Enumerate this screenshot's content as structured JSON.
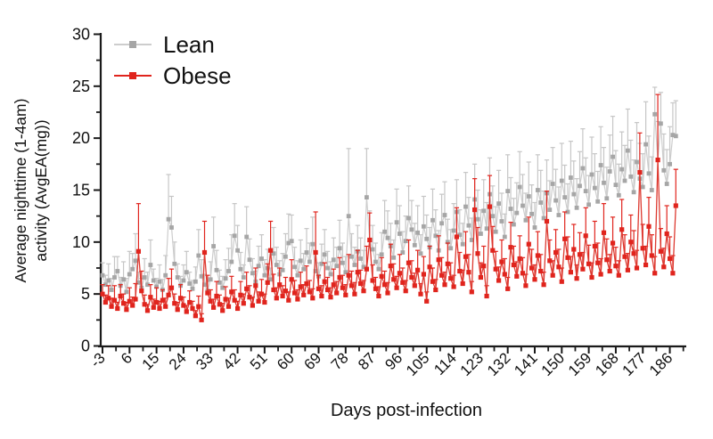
{
  "figure": {
    "background": "#ffffff",
    "axis_color": "#1a1a1a"
  },
  "legend": {
    "items": [
      {
        "label": "Lean",
        "marker_color": "#a6a6a6",
        "line_color": "#cdcdcd"
      },
      {
        "label": "Obese",
        "marker_color": "#e0241d",
        "line_color": "#e0241d"
      }
    ]
  },
  "chart_data": {
    "type": "line",
    "title": "",
    "xlabel": "Days post-infection",
    "ylabel_line1": "Average nighttime (1-4am)",
    "ylabel_line2": "activity (AvgEA(mg))",
    "error_bars": "upper",
    "x_axis": {
      "ticks": [
        -3,
        6,
        15,
        24,
        33,
        42,
        51,
        60,
        69,
        78,
        87,
        96,
        105,
        114,
        123,
        132,
        141,
        150,
        159,
        168,
        177,
        186
      ],
      "minor_tick_offset": 4.5,
      "minor_tick_step": 9,
      "tick_label_rotation": -45
    },
    "y_axis": {
      "ticks": [
        0,
        5,
        10,
        15,
        20,
        25,
        30
      ],
      "minor_ticks": [
        2.5,
        7.5,
        12.5,
        17.5,
        22.5,
        27.5
      ],
      "range": [
        0,
        30
      ]
    },
    "x_start": -3,
    "x_step": 1,
    "series": [
      {
        "name": "Lean",
        "marker": "square",
        "marker_color": "#a6a6a6",
        "line_color": "#cdcdcd",
        "error_color": "#c6c6c6",
        "values": [
          6.8,
          5.9,
          6.3,
          5.4,
          6.6,
          7.2,
          5.8,
          6.4,
          5.2,
          6.9,
          7.4,
          8.2,
          6.1,
          5.6,
          6.6,
          5.9,
          7.8,
          6.3,
          5.7,
          6.2,
          5.4,
          6.8,
          12.2,
          11.4,
          7.9,
          6.6,
          5.8,
          6.3,
          7.1,
          6.0,
          5.5,
          6.2,
          8.7,
          6.7,
          5.9,
          5.3,
          6.4,
          9.6,
          7.3,
          6.1,
          5.6,
          6.5,
          7.2,
          8.1,
          10.6,
          9.2,
          7.4,
          6.6,
          10.5,
          8.3,
          7.0,
          6.2,
          7.7,
          8.4,
          6.8,
          7.5,
          6.4,
          8.9,
          7.8,
          6.9,
          7.3,
          8.6,
          9.9,
          10.1,
          7.6,
          6.8,
          8.2,
          7.4,
          9.0,
          8.1,
          9.8,
          7.2,
          6.7,
          7.9,
          8.8,
          7.5,
          6.9,
          8.3,
          7.7,
          9.4,
          8.0,
          7.1,
          12.5,
          8.6,
          7.8,
          9.1,
          8.4,
          7.6,
          14.3,
          10.2,
          9.3,
          8.1,
          7.4,
          8.8,
          11.0,
          10.4,
          9.6,
          8.5,
          11.9,
          10.8,
          9.0,
          10.1,
          12.3,
          11.2,
          9.7,
          10.9,
          8.9,
          11.5,
          10.3,
          9.5,
          12.1,
          10.6,
          9.2,
          11.8,
          12.6,
          10.0,
          9.4,
          11.1,
          12.9,
          10.7,
          9.8,
          13.4,
          11.6,
          10.2,
          14.1,
          12.2,
          10.8,
          13.0,
          11.3,
          14.6,
          12.5,
          11.0,
          13.7,
          12.0,
          10.5,
          14.9,
          13.2,
          11.7,
          12.8,
          15.3,
          13.5,
          12.1,
          14.4,
          12.7,
          11.4,
          15.0,
          13.8,
          12.3,
          14.7,
          13.1,
          15.6,
          14.0,
          12.6,
          15.9,
          14.3,
          12.9,
          16.2,
          14.6,
          13.3,
          15.4,
          17.1,
          14.9,
          13.6,
          16.5,
          15.2,
          13.9,
          17.4,
          15.7,
          14.2,
          16.8,
          18.2,
          15.5,
          14.5,
          17.0,
          15.9,
          18.8,
          16.3,
          14.8,
          17.7,
          16.1,
          15.3,
          19.4,
          16.6,
          15.0,
          22.3,
          17.9,
          21.4,
          16.9,
          15.6,
          17.5,
          20.3,
          20.2
        ],
        "errors_up": [
          1.2,
          0.9,
          1.6,
          1.1,
          2.0,
          1.4,
          0.8,
          1.7,
          1.3,
          2.2,
          1.5,
          2.6,
          1.0,
          0.9,
          1.8,
          1.2,
          2.4,
          1.1,
          0.8,
          1.6,
          1.0,
          1.9,
          4.3,
          3.0,
          2.1,
          1.3,
          0.9,
          1.5,
          2.0,
          1.1,
          0.8,
          1.4,
          2.5,
          1.6,
          1.0,
          0.9,
          1.7,
          2.8,
          1.9,
          1.2,
          1.1,
          1.8,
          2.2,
          2.6,
          3.1,
          2.4,
          1.6,
          1.2,
          2.9,
          2.0,
          1.4,
          1.0,
          1.9,
          2.3,
          1.5,
          1.8,
          1.1,
          2.5,
          1.7,
          1.3,
          1.6,
          2.2,
          2.8,
          2.5,
          1.9,
          1.4,
          2.0,
          1.5,
          2.3,
          1.8,
          2.6,
          1.7,
          1.3,
          1.9,
          2.4,
          1.6,
          1.2,
          2.1,
          1.8,
          2.7,
          1.9,
          1.5,
          6.5,
          2.2,
          1.7,
          2.5,
          2.0,
          1.6,
          4.7,
          2.8,
          2.3,
          1.8,
          1.4,
          2.1,
          3.0,
          2.6,
          2.2,
          1.7,
          3.2,
          2.7,
          2.0,
          2.4,
          3.1,
          2.8,
          2.1,
          2.6,
          1.8,
          2.9,
          2.3,
          1.9,
          3.0,
          2.5,
          1.9,
          2.8,
          3.2,
          2.2,
          1.8,
          2.6,
          3.1,
          2.4,
          2.0,
          3.3,
          2.7,
          2.1,
          3.4,
          2.8,
          2.3,
          3.0,
          2.5,
          3.5,
          2.9,
          2.4,
          3.2,
          2.7,
          2.2,
          3.5,
          3.0,
          2.5,
          2.9,
          3.4,
          3.0,
          2.6,
          3.3,
          2.8,
          2.4,
          3.4,
          3.1,
          2.6,
          3.2,
          2.8,
          3.5,
          3.0,
          2.7,
          3.6,
          3.1,
          2.7,
          3.5,
          3.2,
          2.8,
          3.3,
          3.8,
          3.2,
          2.8,
          3.6,
          3.3,
          2.9,
          3.7,
          3.4,
          3.0,
          3.5,
          3.9,
          3.3,
          3.0,
          3.6,
          3.4,
          4.0,
          3.5,
          3.1,
          3.8,
          3.4,
          3.2,
          4.1,
          3.6,
          3.2,
          2.6,
          3.7,
          3.0,
          3.5,
          3.3,
          3.6,
          3.1,
          3.4
        ]
      },
      {
        "name": "Obese",
        "marker": "square",
        "marker_color": "#e0241d",
        "line_color": "#dd3a31",
        "error_color": "#e0241d",
        "values": [
          5.0,
          4.2,
          4.6,
          3.8,
          4.4,
          3.6,
          4.8,
          4.1,
          3.5,
          4.3,
          3.9,
          4.5,
          9.1,
          5.3,
          4.0,
          3.4,
          4.7,
          3.7,
          4.2,
          3.6,
          4.4,
          3.8,
          4.9,
          5.6,
          4.1,
          3.5,
          4.6,
          3.9,
          3.3,
          4.2,
          3.6,
          2.9,
          3.8,
          2.5,
          9.0,
          5.1,
          4.3,
          3.7,
          4.8,
          4.0,
          3.4,
          4.5,
          3.8,
          5.2,
          4.4,
          3.6,
          4.9,
          4.1,
          5.5,
          4.7,
          3.9,
          5.8,
          4.3,
          5.0,
          4.2,
          6.1,
          9.2,
          5.4,
          4.6,
          5.9,
          4.8,
          5.3,
          4.4,
          6.4,
          5.1,
          4.5,
          5.7,
          4.9,
          6.0,
          5.2,
          4.6,
          9.0,
          5.5,
          4.8,
          6.2,
          5.4,
          4.7,
          5.9,
          5.1,
          6.6,
          5.6,
          4.9,
          6.8,
          5.8,
          5.0,
          7.1,
          6.0,
          5.3,
          7.4,
          10.2,
          6.3,
          5.5,
          4.8,
          6.7,
          5.9,
          5.1,
          7.7,
          6.4,
          5.6,
          7.0,
          6.1,
          5.3,
          8.0,
          6.6,
          5.8,
          7.3,
          5.0,
          6.9,
          4.3,
          7.6,
          6.2,
          5.4,
          8.3,
          6.8,
          5.9,
          7.9,
          6.5,
          5.7,
          10.5,
          7.2,
          6.0,
          8.6,
          7.1,
          5.2,
          13.1,
          8.9,
          6.6,
          7.7,
          4.8,
          13.4,
          9.2,
          7.4,
          6.3,
          8.1,
          6.9,
          5.5,
          9.5,
          7.8,
          6.7,
          8.4,
          7.0,
          5.8,
          9.8,
          7.5,
          6.4,
          8.7,
          7.2,
          5.9,
          12.0,
          8.2,
          6.8,
          9.0,
          7.6,
          6.2,
          10.3,
          8.5,
          7.1,
          9.3,
          6.5,
          8.8,
          7.4,
          10.6,
          7.9,
          6.6,
          9.6,
          8.0,
          6.9,
          10.9,
          8.3,
          7.2,
          9.9,
          7.7,
          6.8,
          11.2,
          8.6,
          7.3,
          10.0,
          8.9,
          7.5,
          16.7,
          9.4,
          7.8,
          11.5,
          8.7,
          7.0,
          17.9,
          9.1,
          7.6,
          10.8,
          8.4,
          7.0,
          13.5
        ],
        "errors_up": [
          0.9,
          0.7,
          1.2,
          0.8,
          1.4,
          0.6,
          1.1,
          0.9,
          0.7,
          1.3,
          0.8,
          1.5,
          4.6,
          1.9,
          0.9,
          0.6,
          1.2,
          0.8,
          1.4,
          0.7,
          1.0,
          0.8,
          1.6,
          1.8,
          0.9,
          0.7,
          1.3,
          0.8,
          0.6,
          1.1,
          0.7,
          0.5,
          1.0,
          0.6,
          3.0,
          1.7,
          1.1,
          0.8,
          1.4,
          0.9,
          0.7,
          1.2,
          0.8,
          1.5,
          1.0,
          0.7,
          1.3,
          0.9,
          1.6,
          1.1,
          0.8,
          1.7,
          0.9,
          1.4,
          0.8,
          1.8,
          2.8,
          1.5,
          1.0,
          1.6,
          1.0,
          1.3,
          0.8,
          1.9,
          1.2,
          0.9,
          1.4,
          1.0,
          1.7,
          1.1,
          0.9,
          3.9,
          1.3,
          1.0,
          1.8,
          1.2,
          0.9,
          1.5,
          1.1,
          1.9,
          1.2,
          1.0,
          2.0,
          1.4,
          1.1,
          2.1,
          1.3,
          1.0,
          2.2,
          2.6,
          1.5,
          1.1,
          0.9,
          1.8,
          1.3,
          1.0,
          2.1,
          1.5,
          1.1,
          1.8,
          1.4,
          1.0,
          2.2,
          1.6,
          1.2,
          1.9,
          1.0,
          1.7,
          0.9,
          2.0,
          1.3,
          1.0,
          2.3,
          1.7,
          1.2,
          2.0,
          1.5,
          1.1,
          2.8,
          1.8,
          1.3,
          2.4,
          1.7,
          1.0,
          3.0,
          2.5,
          1.4,
          1.9,
          1.0,
          3.0,
          2.3,
          1.7,
          1.3,
          2.1,
          1.5,
          1.1,
          2.4,
          1.8,
          1.4,
          2.2,
          1.5,
          1.1,
          2.6,
          1.8,
          1.4,
          2.3,
          1.6,
          1.2,
          2.9,
          2.0,
          1.4,
          2.2,
          1.7,
          1.3,
          2.6,
          2.0,
          1.5,
          2.4,
          1.3,
          2.1,
          1.6,
          2.7,
          1.8,
          1.4,
          2.4,
          1.9,
          1.5,
          2.8,
          2.0,
          1.6,
          2.5,
          1.8,
          1.4,
          2.9,
          2.1,
          1.6,
          2.6,
          2.2,
          1.7,
          3.8,
          2.3,
          1.8,
          2.8,
          2.0,
          1.6,
          6.3,
          2.2,
          1.8,
          2.7,
          2.1,
          1.7,
          3.5
        ]
      }
    ]
  }
}
